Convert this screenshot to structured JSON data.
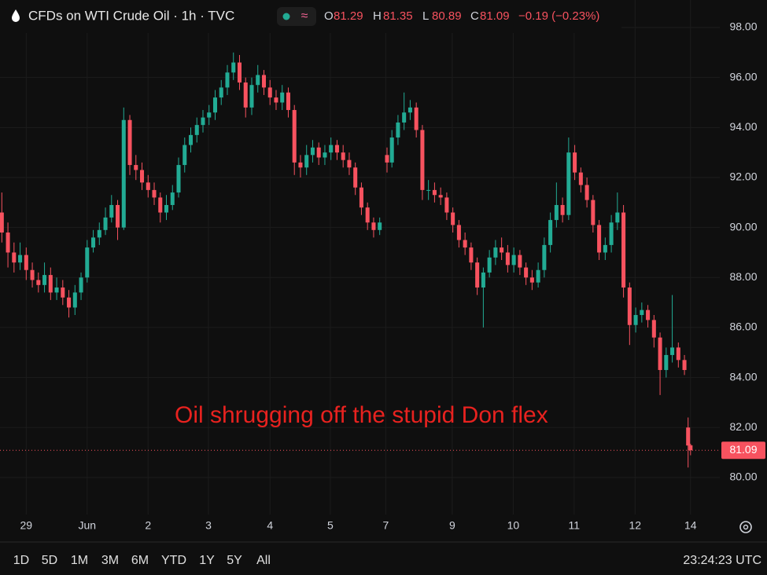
{
  "header": {
    "title": "CFDs on WTI Crude Oil · 1h · TVC",
    "ohlc_keys": [
      "O",
      "H",
      "L",
      "C"
    ],
    "change": "−0.19 (−0.23%)"
  },
  "toolbar": {
    "ranges": [
      "1D",
      "5D",
      "1M",
      "3M",
      "6M",
      "YTD",
      "1Y",
      "5Y",
      "All"
    ],
    "clock": "23:24:23 UTC"
  },
  "chart_data": {
    "type": "candlestick",
    "annotation": "Oil shrugging off the stupid Don flex",
    "up_color": "#22ab94",
    "down_color": "#f7525f",
    "grid": true,
    "xlim": [
      -0.43,
      11.38
    ],
    "xticks": [
      {
        "value": 0,
        "label": "29"
      },
      {
        "value": 1,
        "label": "Jun"
      },
      {
        "value": 2,
        "label": "2"
      },
      {
        "value": 2.99,
        "label": "3"
      },
      {
        "value": 4,
        "label": "4"
      },
      {
        "value": 4.99,
        "label": "5"
      },
      {
        "value": 5.9,
        "label": "7"
      },
      {
        "value": 6.99,
        "label": "9"
      },
      {
        "value": 7.99,
        "label": "10"
      },
      {
        "value": 8.99,
        "label": "11"
      },
      {
        "value": 9.99,
        "label": "12"
      },
      {
        "value": 10.9,
        "label": "14"
      }
    ],
    "ylim": [
      78.52,
      99.1
    ],
    "yticks": [
      {
        "value": 80,
        "label": "80.00"
      },
      {
        "value": 82,
        "label": "82.00"
      },
      {
        "value": 84,
        "label": "84.00"
      },
      {
        "value": 86,
        "label": "86.00"
      },
      {
        "value": 88,
        "label": "88.00"
      },
      {
        "value": 90,
        "label": "90.00"
      },
      {
        "value": 92,
        "label": "92.00"
      },
      {
        "value": 94,
        "label": "94.00"
      },
      {
        "value": 96,
        "label": "96.00"
      },
      {
        "value": 98,
        "label": "98.00"
      }
    ],
    "x": [
      -0.4,
      -0.3,
      -0.2,
      -0.1,
      0,
      0.1,
      0.2,
      0.3,
      0.4,
      0.5,
      0.6,
      0.7,
      0.8,
      0.9,
      1.0,
      1.1,
      1.2,
      1.3,
      1.4,
      1.5,
      1.6,
      1.7,
      1.8,
      1.9,
      2.0,
      2.1,
      2.2,
      2.3,
      2.4,
      2.5,
      2.6,
      2.7,
      2.8,
      2.9,
      3.0,
      3.1,
      3.2,
      3.3,
      3.4,
      3.5,
      3.6,
      3.7,
      3.8,
      3.9,
      4.0,
      4.1,
      4.2,
      4.3,
      4.4,
      4.5,
      4.6,
      4.7,
      4.8,
      4.9,
      5.0,
      5.1,
      5.2,
      5.3,
      5.4,
      5.5,
      5.6,
      5.7,
      5.8,
      5.92,
      6.0,
      6.1,
      6.2,
      6.3,
      6.4,
      6.5,
      6.6,
      6.7,
      6.8,
      6.9,
      7.0,
      7.1,
      7.2,
      7.3,
      7.4,
      7.5,
      7.6,
      7.7,
      7.8,
      7.9,
      8.0,
      8.1,
      8.2,
      8.3,
      8.4,
      8.5,
      8.6,
      8.7,
      8.8,
      8.9,
      9.0,
      9.1,
      9.2,
      9.3,
      9.4,
      9.5,
      9.6,
      9.7,
      9.8,
      9.9,
      10.0,
      10.1,
      10.2,
      10.3,
      10.4,
      10.5,
      10.6,
      10.7,
      10.8,
      10.86,
      10.9
    ],
    "open": [
      90.6,
      89.8,
      89.0,
      88.6,
      88.9,
      88.3,
      87.9,
      87.7,
      88.1,
      87.4,
      87.6,
      87.2,
      86.8,
      87.4,
      88.0,
      89.2,
      89.6,
      89.9,
      90.4,
      90.9,
      90.0,
      94.3,
      92.5,
      92.3,
      91.8,
      91.5,
      91.2,
      90.6,
      90.9,
      91.4,
      92.5,
      93.3,
      93.7,
      94.1,
      94.4,
      94.6,
      95.2,
      95.6,
      96.2,
      96.6,
      95.8,
      94.8,
      95.7,
      96.1,
      95.6,
      95.2,
      95.0,
      95.4,
      94.7,
      92.6,
      92.4,
      92.9,
      93.2,
      92.8,
      93.0,
      93.3,
      93.0,
      92.7,
      92.4,
      91.6,
      90.8,
      90.2,
      89.9,
      92.9,
      92.6,
      93.6,
      94.2,
      94.6,
      94.8,
      93.9,
      91.5,
      91.5,
      91.3,
      91.2,
      90.6,
      90.1,
      89.5,
      89.2,
      88.6,
      87.6,
      88.2,
      88.8,
      89.2,
      89.0,
      88.5,
      88.9,
      88.4,
      88.0,
      87.8,
      88.3,
      89.3,
      90.3,
      90.9,
      90.5,
      93.0,
      92.2,
      91.7,
      91.1,
      90.1,
      89.0,
      89.3,
      90.2,
      90.6,
      87.6,
      86.1,
      86.5,
      86.7,
      86.3,
      85.6,
      84.3,
      84.9,
      85.2,
      84.7,
      82.0,
      81.29
    ],
    "high": [
      91.4,
      90.2,
      89.4,
      89.4,
      89.2,
      88.6,
      88.2,
      88.6,
      88.4,
      88.0,
      87.9,
      87.5,
      87.7,
      88.2,
      89.5,
      89.9,
      90.2,
      90.8,
      91.3,
      91.1,
      94.8,
      94.5,
      92.9,
      92.6,
      92.1,
      91.8,
      91.4,
      91.3,
      91.7,
      92.8,
      93.6,
      94.0,
      94.4,
      94.7,
      94.9,
      95.5,
      95.9,
      96.5,
      97.0,
      96.9,
      96.0,
      96.0,
      96.5,
      96.3,
      95.9,
      95.5,
      95.7,
      95.6,
      94.9,
      92.9,
      93.3,
      93.5,
      93.4,
      93.3,
      93.6,
      93.5,
      93.3,
      93.0,
      92.6,
      91.8,
      91.0,
      90.4,
      90.4,
      93.2,
      93.9,
      94.5,
      95.4,
      95.1,
      95.0,
      94.1,
      91.9,
      91.8,
      91.6,
      91.4,
      90.8,
      90.3,
      89.8,
      89.4,
      88.8,
      88.4,
      89.1,
      89.5,
      89.6,
      89.3,
      89.2,
      89.1,
      88.6,
      88.3,
      88.6,
      89.6,
      90.6,
      91.8,
      91.2,
      93.6,
      93.3,
      92.4,
      92.0,
      91.3,
      90.3,
      89.6,
      90.5,
      91.4,
      90.9,
      87.8,
      86.8,
      87.0,
      86.9,
      86.5,
      85.8,
      85.2,
      87.3,
      85.4,
      84.9,
      82.4,
      81.35
    ],
    "low": [
      89.4,
      88.4,
      88.2,
      88.3,
      87.9,
      87.6,
      87.4,
      87.4,
      87.1,
      87.1,
      86.9,
      86.4,
      86.5,
      87.1,
      87.8,
      89.0,
      89.3,
      89.7,
      90.2,
      89.5,
      89.9,
      92.1,
      91.9,
      91.5,
      91.2,
      90.9,
      90.2,
      90.3,
      90.7,
      91.2,
      92.2,
      93.0,
      93.4,
      93.8,
      94.1,
      94.3,
      94.9,
      95.3,
      95.9,
      95.5,
      94.4,
      94.5,
      95.4,
      95.3,
      94.9,
      94.7,
      94.7,
      94.4,
      92.1,
      92.0,
      92.1,
      92.6,
      92.5,
      92.5,
      92.7,
      92.7,
      92.4,
      92.1,
      91.3,
      90.5,
      89.9,
      89.6,
      89.7,
      92.2,
      92.4,
      93.3,
      93.9,
      94.3,
      93.6,
      91.1,
      91.1,
      91.0,
      90.9,
      90.3,
      89.8,
      89.2,
      88.9,
      88.3,
      87.3,
      86.0,
      88.0,
      88.5,
      88.7,
      88.2,
      88.2,
      88.1,
      87.7,
      87.5,
      87.6,
      88.0,
      89.0,
      90.0,
      90.2,
      90.3,
      91.9,
      91.4,
      90.8,
      89.8,
      88.7,
      88.7,
      89.0,
      89.9,
      87.2,
      85.3,
      85.8,
      86.2,
      86.0,
      85.2,
      83.3,
      84.0,
      84.6,
      84.4,
      84.1,
      80.4,
      80.89
    ],
    "close": [
      89.8,
      89.0,
      88.6,
      88.9,
      88.3,
      87.9,
      87.7,
      88.1,
      87.4,
      87.6,
      87.2,
      86.8,
      87.4,
      88.0,
      89.2,
      89.6,
      89.9,
      90.4,
      90.9,
      90.0,
      94.3,
      92.5,
      92.3,
      91.8,
      91.5,
      91.2,
      90.6,
      90.9,
      91.4,
      92.5,
      93.3,
      93.7,
      94.1,
      94.4,
      94.6,
      95.2,
      95.6,
      96.2,
      96.6,
      95.8,
      94.8,
      95.7,
      96.1,
      95.6,
      95.2,
      95.0,
      95.4,
      94.7,
      92.6,
      92.4,
      92.9,
      93.2,
      92.8,
      93.0,
      93.3,
      93.0,
      92.7,
      92.4,
      91.6,
      90.8,
      90.2,
      89.9,
      90.2,
      92.6,
      93.6,
      94.2,
      94.6,
      94.8,
      93.9,
      91.5,
      91.5,
      91.3,
      91.2,
      90.6,
      90.1,
      89.5,
      89.2,
      88.6,
      87.6,
      88.2,
      88.8,
      89.2,
      89.0,
      88.5,
      88.9,
      88.4,
      88.0,
      87.8,
      88.3,
      89.3,
      90.3,
      90.9,
      90.5,
      93.0,
      92.2,
      91.7,
      91.1,
      90.1,
      89.0,
      89.3,
      90.2,
      90.6,
      87.6,
      86.1,
      86.5,
      86.7,
      86.3,
      85.6,
      84.3,
      84.9,
      85.2,
      84.7,
      84.3,
      81.28,
      81.09
    ]
  }
}
